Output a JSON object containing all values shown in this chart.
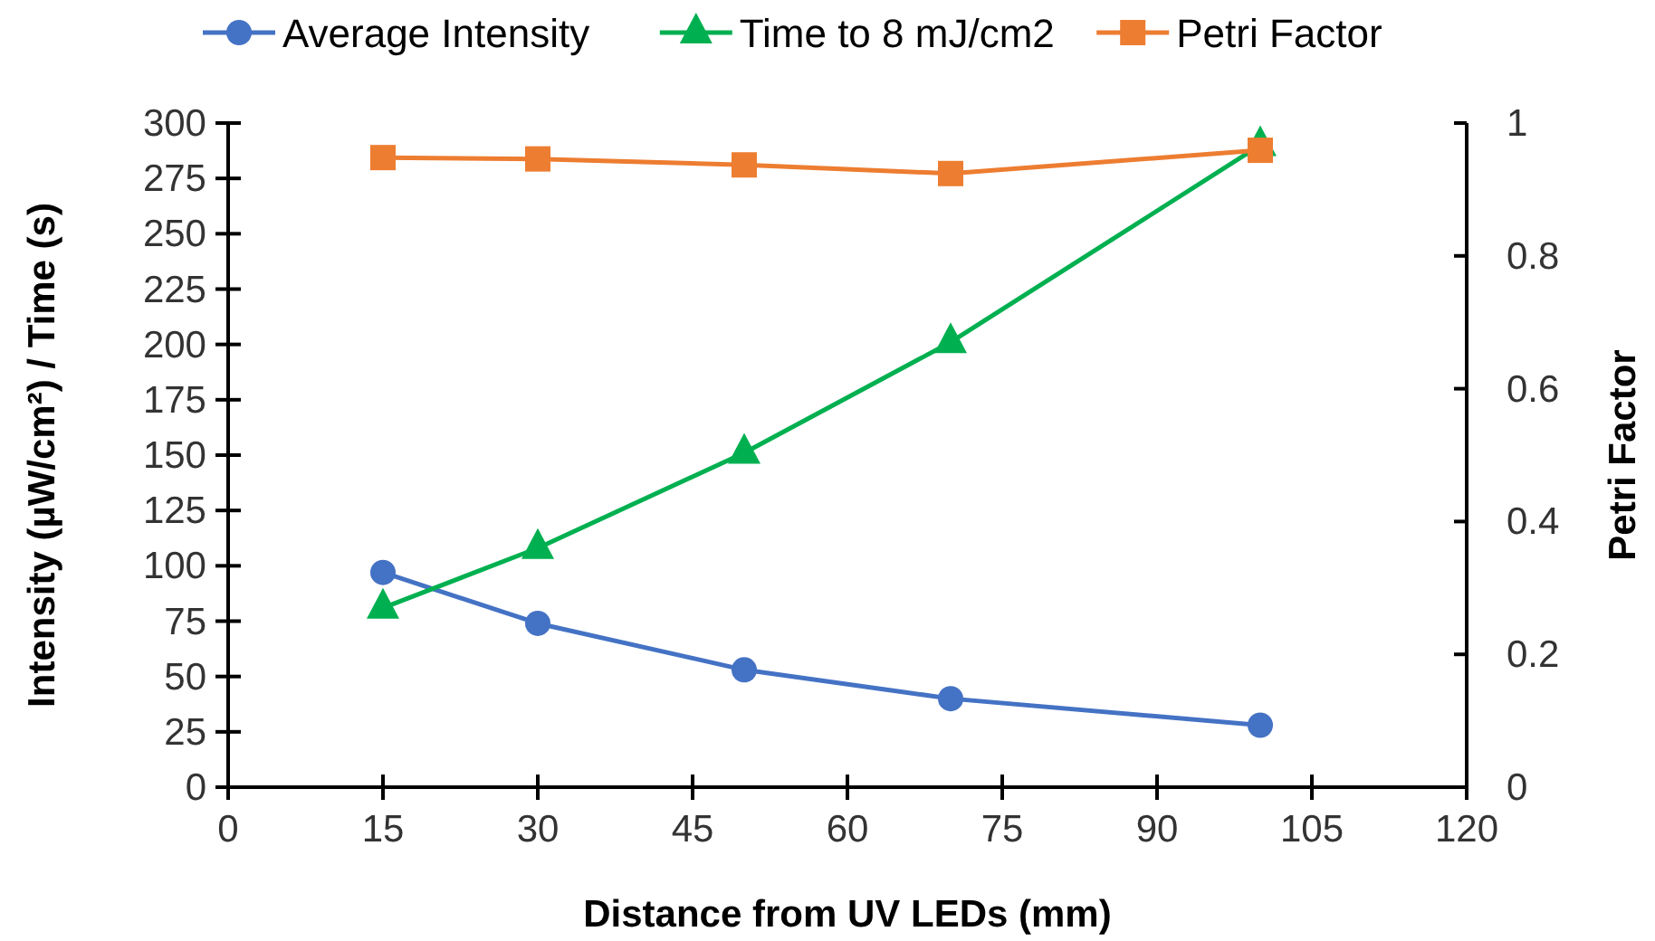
{
  "chart_data": {
    "type": "line",
    "xlabel": "Distance from UV LEDs (mm)",
    "ylabel": "Intensity (µW/cm²) / Time (s)",
    "y2label": "Petri Factor",
    "x": [
      15,
      30,
      50,
      70,
      100
    ],
    "series": [
      {
        "name": "Average Intensity",
        "color": "#4472c4",
        "marker": "circle",
        "values": [
          97,
          74,
          53,
          40,
          28
        ]
      },
      {
        "name": "Time to 8 mJ/cm2",
        "color": "#00b050",
        "marker": "triangle",
        "values": [
          81,
          108,
          151,
          201,
          290
        ]
      },
      {
        "name": "Petri Factor",
        "color": "#ed7d31",
        "marker": "square",
        "axis": "y2",
        "values": [
          0.948,
          0.946,
          0.937,
          0.924,
          0.959
        ]
      }
    ],
    "xlim": [
      0,
      120
    ],
    "xticks": [
      0,
      15,
      30,
      45,
      60,
      75,
      90,
      105,
      120
    ],
    "ylim": [
      0,
      300
    ],
    "yticks": [
      0,
      25,
      50,
      75,
      100,
      125,
      150,
      175,
      200,
      225,
      250,
      275,
      300
    ],
    "y2lim": [
      0,
      1
    ],
    "y2ticks": [
      0,
      0.2,
      0.4,
      0.6,
      0.8,
      1
    ],
    "grid": false,
    "legend": "top",
    "line_style": "solid"
  }
}
